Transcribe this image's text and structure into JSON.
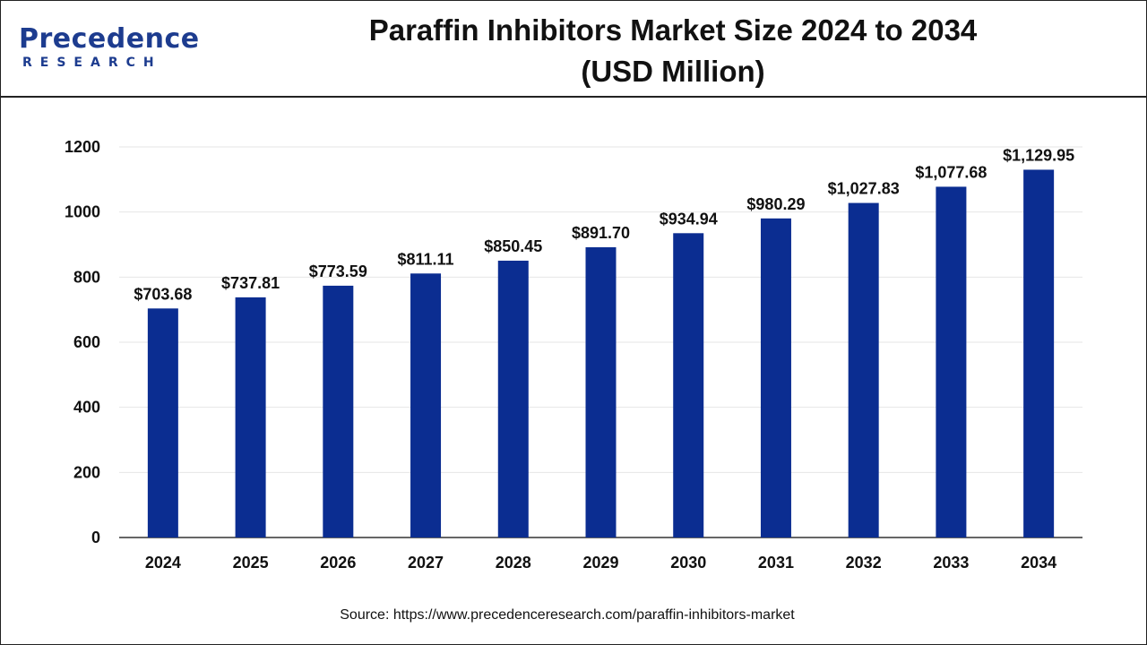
{
  "logo": {
    "line1": "Precedence",
    "line2": "RESEARCH"
  },
  "header": {
    "title_line1": "Paraffin Inhibitors Market Size 2024 to 2034",
    "title_line2": "(USD Million)"
  },
  "source": "Source: https://www.precedenceresearch.com/paraffin-inhibitors-market",
  "colors": {
    "bar": "#0b2d91",
    "grid": "#e6e6e6",
    "axis": "#333333",
    "logo": "#1d3c8f"
  },
  "chart_data": {
    "type": "bar",
    "title": "Paraffin Inhibitors Market Size 2024 to 2034 (USD Million)",
    "xlabel": "",
    "ylabel": "",
    "categories": [
      "2024",
      "2025",
      "2026",
      "2027",
      "2028",
      "2029",
      "2030",
      "2031",
      "2032",
      "2033",
      "2034"
    ],
    "values": [
      703.68,
      737.81,
      773.59,
      811.11,
      850.45,
      891.7,
      934.94,
      980.29,
      1027.83,
      1077.68,
      1129.95
    ],
    "data_labels": [
      "$703.68",
      "$737.81",
      "$773.59",
      "$811.11",
      "$850.45",
      "$891.70",
      "$934.94",
      "$980.29",
      "$1,027.83",
      "$1,077.68",
      "$1,129.95"
    ],
    "ylim": [
      0,
      1200
    ],
    "yticks": [
      "0",
      "200",
      "400",
      "600",
      "800",
      "1000",
      "1200"
    ],
    "grid": true,
    "legend": "none"
  }
}
